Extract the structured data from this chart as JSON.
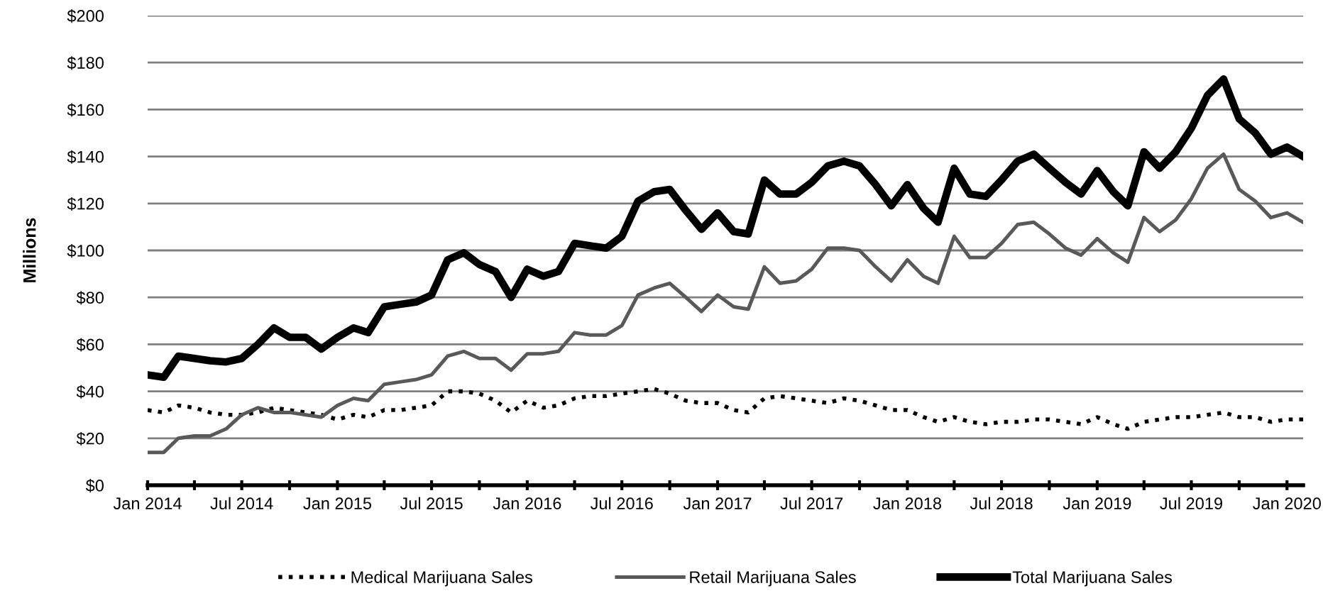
{
  "chart_data": {
    "type": "line",
    "ylabel": "Millions",
    "legend": "bottom",
    "grid": "y",
    "marker": "none",
    "x": [
      "2014-01",
      "2014-02",
      "2014-03",
      "2014-04",
      "2014-05",
      "2014-06",
      "2014-07",
      "2014-08",
      "2014-09",
      "2014-10",
      "2014-11",
      "2014-12",
      "2015-01",
      "2015-02",
      "2015-03",
      "2015-04",
      "2015-05",
      "2015-06",
      "2015-07",
      "2015-08",
      "2015-09",
      "2015-10",
      "2015-11",
      "2015-12",
      "2016-01",
      "2016-02",
      "2016-03",
      "2016-04",
      "2016-05",
      "2016-06",
      "2016-07",
      "2016-08",
      "2016-09",
      "2016-10",
      "2016-11",
      "2016-12",
      "2017-01",
      "2017-02",
      "2017-03",
      "2017-04",
      "2017-05",
      "2017-06",
      "2017-07",
      "2017-08",
      "2017-09",
      "2017-10",
      "2017-11",
      "2017-12",
      "2018-01",
      "2018-02",
      "2018-03",
      "2018-04",
      "2018-05",
      "2018-06",
      "2018-07",
      "2018-08",
      "2018-09",
      "2018-10",
      "2018-11",
      "2018-12",
      "2019-01",
      "2019-02",
      "2019-03",
      "2019-04",
      "2019-05",
      "2019-06",
      "2019-07",
      "2019-08",
      "2019-09",
      "2019-10",
      "2019-11",
      "2019-12",
      "2020-01",
      "2020-02"
    ],
    "xlim": [
      "2014-01",
      "2020-02"
    ],
    "xticks": [
      {
        "value": "2014-01",
        "label": "Jan 2014"
      },
      {
        "value": "2014-04",
        "label": null
      },
      {
        "value": "2014-07",
        "label": "Jul 2014"
      },
      {
        "value": "2014-10",
        "label": null
      },
      {
        "value": "2015-01",
        "label": "Jan 2015"
      },
      {
        "value": "2015-04",
        "label": null
      },
      {
        "value": "2015-07",
        "label": "Jul 2015"
      },
      {
        "value": "2015-10",
        "label": null
      },
      {
        "value": "2016-01",
        "label": "Jan 2016"
      },
      {
        "value": "2016-04",
        "label": null
      },
      {
        "value": "2016-07",
        "label": "Jul 2016"
      },
      {
        "value": "2016-10",
        "label": null
      },
      {
        "value": "2017-01",
        "label": "Jan 2017"
      },
      {
        "value": "2017-04",
        "label": null
      },
      {
        "value": "2017-07",
        "label": "Jul 2017"
      },
      {
        "value": "2017-10",
        "label": null
      },
      {
        "value": "2018-01",
        "label": "Jan 2018"
      },
      {
        "value": "2018-04",
        "label": null
      },
      {
        "value": "2018-07",
        "label": "Jul 2018"
      },
      {
        "value": "2018-10",
        "label": null
      },
      {
        "value": "2019-01",
        "label": "Jan 2019"
      },
      {
        "value": "2019-04",
        "label": null
      },
      {
        "value": "2019-07",
        "label": "Jul 2019"
      },
      {
        "value": "2019-10",
        "label": null
      },
      {
        "value": "2020-01",
        "label": "Jan 2020"
      }
    ],
    "ylim": [
      0,
      200
    ],
    "yticks": [
      {
        "value": 0,
        "label": "$0"
      },
      {
        "value": 20,
        "label": "$20"
      },
      {
        "value": 40,
        "label": "$40"
      },
      {
        "value": 60,
        "label": "$60"
      },
      {
        "value": 80,
        "label": "$80"
      },
      {
        "value": 100,
        "label": "$100"
      },
      {
        "value": 120,
        "label": "$120"
      },
      {
        "value": 140,
        "label": "$140"
      },
      {
        "value": 160,
        "label": "$160"
      },
      {
        "value": 180,
        "label": "$180"
      },
      {
        "value": 200,
        "label": "$200"
      }
    ],
    "series": [
      {
        "name": "Medical Marijuana Sales",
        "color": "#000000",
        "line_style": "dotted",
        "values": [
          32,
          31,
          34,
          33,
          31,
          30,
          30,
          31,
          33,
          32,
          31,
          30,
          28,
          30,
          29,
          32,
          32,
          33,
          34,
          40,
          40,
          39,
          36,
          31,
          36,
          33,
          34,
          37,
          38,
          38,
          39,
          40,
          41,
          39,
          36,
          35,
          35,
          32,
          31,
          37,
          38,
          37,
          36,
          35,
          37,
          36,
          34,
          32,
          32,
          29,
          27,
          29,
          27,
          26,
          27,
          27,
          28,
          28,
          27,
          26,
          29,
          26,
          24,
          27,
          28,
          29,
          29,
          30,
          31,
          29,
          29,
          27,
          28,
          28
        ]
      },
      {
        "name": "Retail Marijuana Sales",
        "color": "#595959",
        "line_style": "solid",
        "values": [
          14,
          14,
          20,
          21,
          21,
          24,
          30,
          33,
          31,
          31,
          30,
          29,
          34,
          37,
          36,
          43,
          44,
          45,
          47,
          55,
          57,
          54,
          54,
          49,
          56,
          56,
          57,
          65,
          64,
          64,
          68,
          81,
          84,
          86,
          80,
          74,
          81,
          76,
          75,
          93,
          86,
          87,
          92,
          101,
          101,
          100,
          93,
          87,
          96,
          89,
          86,
          106,
          97,
          97,
          103,
          111,
          112,
          107,
          101,
          98,
          105,
          99,
          95,
          114,
          108,
          113,
          122,
          135,
          141,
          126,
          121,
          114,
          116,
          112
        ]
      },
      {
        "name": "Total Marijuana Sales",
        "color": "#000000",
        "line_style": "solid",
        "values": [
          47,
          46,
          55,
          54,
          53,
          52.5,
          54,
          60,
          67,
          63,
          63,
          58,
          63,
          67,
          65,
          76,
          77,
          78,
          81,
          96,
          99,
          94,
          91,
          80,
          92,
          89,
          91,
          103,
          102,
          101,
          106,
          121,
          125,
          126,
          117,
          109,
          116,
          108,
          107,
          130,
          124,
          124,
          129,
          136,
          138,
          136,
          128,
          119,
          128,
          118,
          112,
          135,
          124,
          123,
          130,
          138,
          141,
          135,
          129,
          124,
          134,
          125,
          119,
          142,
          135,
          142,
          152,
          166,
          173,
          156,
          150,
          141,
          144,
          140
        ]
      }
    ]
  }
}
